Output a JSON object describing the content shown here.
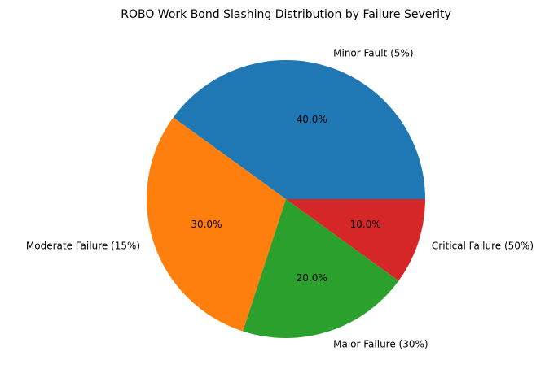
{
  "chart_data": {
    "type": "pie",
    "title": "ROBO Work Bond Slashing Distribution by Failure Severity",
    "categories": [
      "Minor Fault (5%)",
      "Moderate Failure (15%)",
      "Major Failure (30%)",
      "Critical Failure (50%)"
    ],
    "values": [
      40,
      30,
      20,
      10
    ],
    "value_labels": [
      "40.0%",
      "30.0%",
      "20.0%",
      "10.0%"
    ],
    "colors": [
      "#1f77b4",
      "#ff7f0e",
      "#2ca02c",
      "#d62728"
    ],
    "start_angle": 0,
    "direction": "counterclockwise"
  }
}
